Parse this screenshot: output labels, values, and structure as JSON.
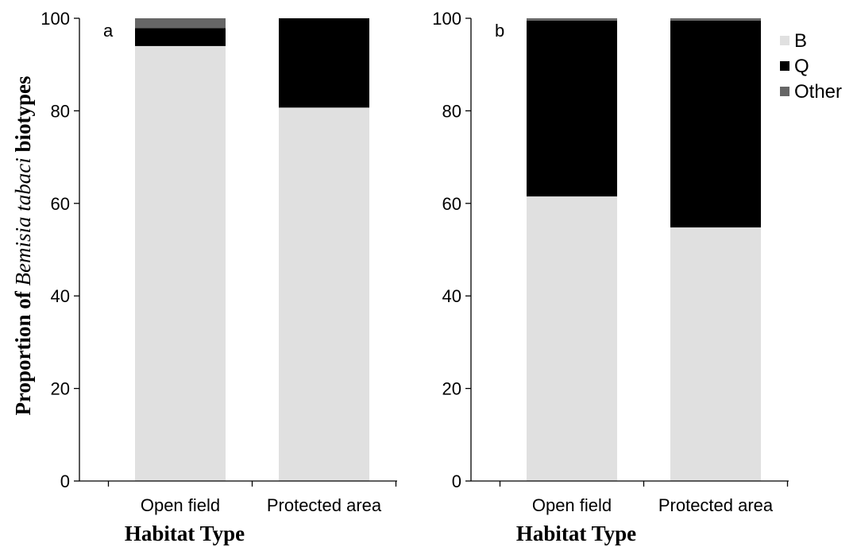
{
  "chart_data": [
    {
      "type": "bar",
      "stacked": true,
      "panel_label": "a",
      "categories": [
        "Open field",
        "Protected area"
      ],
      "series": [
        {
          "name": "B",
          "values": [
            94,
            80.7
          ],
          "color": "#e0e0e0"
        },
        {
          "name": "Q",
          "values": [
            3.9,
            19.3
          ],
          "color": "#000000"
        },
        {
          "name": "Other",
          "values": [
            2.1,
            0
          ],
          "color": "#666666"
        }
      ],
      "ylim": [
        0,
        100
      ],
      "yticks": [
        0,
        20,
        40,
        60,
        80,
        100
      ],
      "ylabel_parts": [
        {
          "text": "Proportion of ",
          "italic": false
        },
        {
          "text": "Bemisia tabaci",
          "italic": true
        },
        {
          "text": " biotypes",
          "italic": false
        }
      ],
      "xlabel": "Habitat Type",
      "grid": false
    },
    {
      "type": "bar",
      "stacked": true,
      "panel_label": "b",
      "categories": [
        "Open field",
        "Protected area"
      ],
      "series": [
        {
          "name": "B",
          "values": [
            61.5,
            54.8
          ],
          "color": "#e0e0e0"
        },
        {
          "name": "Q",
          "values": [
            38,
            44.7
          ],
          "color": "#000000"
        },
        {
          "name": "Other",
          "values": [
            0.5,
            0.5
          ],
          "color": "#666666"
        }
      ],
      "ylim": [
        0,
        100
      ],
      "yticks": [
        0,
        20,
        40,
        60,
        80,
        100
      ],
      "xlabel": "Habitat Type",
      "grid": false,
      "legend": {
        "position": "top-right",
        "entries": [
          "B",
          "Q",
          "Other"
        ]
      }
    }
  ]
}
